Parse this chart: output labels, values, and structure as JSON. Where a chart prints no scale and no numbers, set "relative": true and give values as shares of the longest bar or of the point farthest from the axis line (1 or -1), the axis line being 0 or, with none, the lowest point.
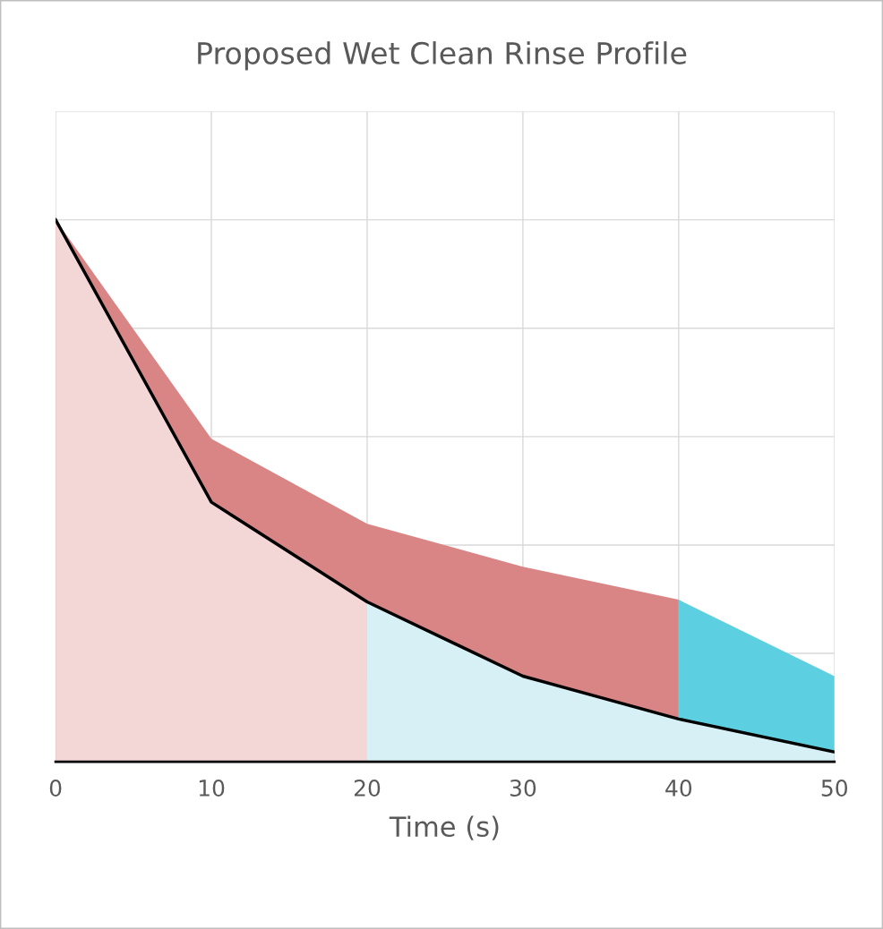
{
  "chart_data": {
    "type": "area",
    "title": "Proposed Wet Clean Rinse Profile",
    "xlabel": "Time (s)",
    "relative": true,
    "xlim": [
      0,
      50
    ],
    "xticks": [
      0,
      10,
      20,
      30,
      40,
      50
    ],
    "grid": true,
    "tick_labels": "x",
    "series": [
      {
        "x": [
          0,
          10,
          20,
          30,
          40
        ],
        "values": [
          1,
          0.596,
          0.439,
          0.36,
          0.299
        ],
        "color": "#d98585"
      },
      {
        "x": [
          40,
          50
        ],
        "values": [
          0.299,
          0.158
        ],
        "color": "#5ccfe0"
      },
      {
        "x": [
          0,
          10,
          20
        ],
        "values": [
          1,
          0.479,
          0.295
        ],
        "color": "#f3d6d6"
      },
      {
        "x": [
          20,
          30,
          40,
          50
        ],
        "values": [
          0.295,
          0.158,
          0.079,
          0.018
        ],
        "color": "#d6f0f5"
      },
      {
        "type": "line",
        "x": [
          0,
          10,
          20,
          30,
          40,
          50
        ],
        "values": [
          1,
          0.479,
          0.295,
          0.158,
          0.079,
          0.018
        ],
        "color": "#000000"
      }
    ]
  }
}
